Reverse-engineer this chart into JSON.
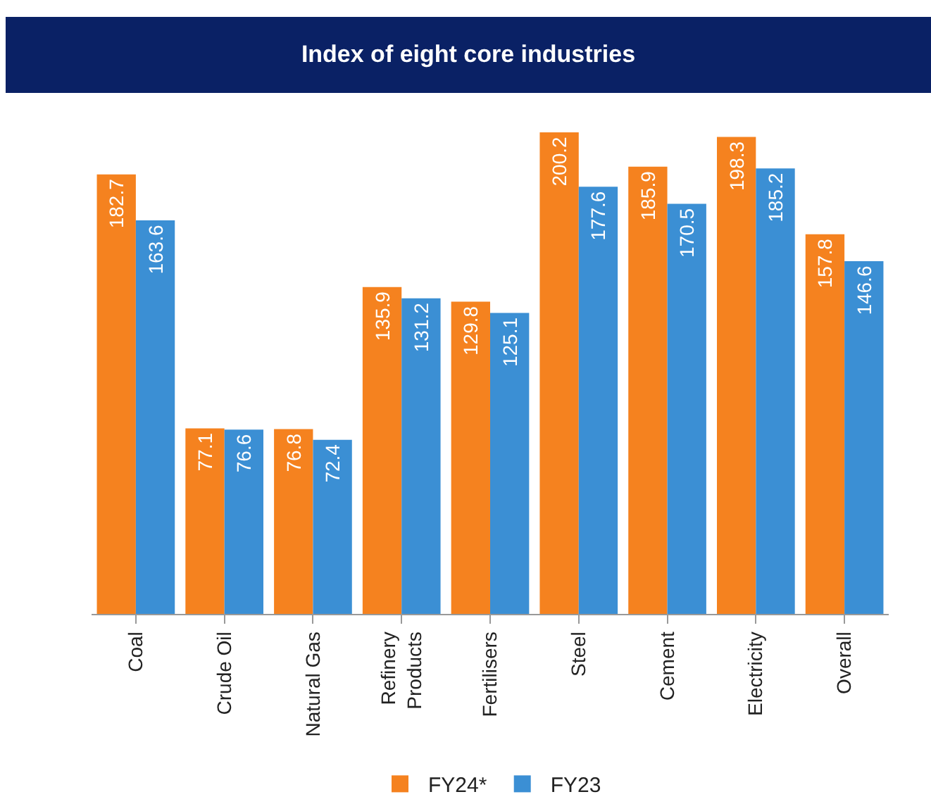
{
  "chart_data": {
    "type": "bar",
    "title": "Index of eight core industries",
    "categories": [
      "Coal",
      "Crude Oil",
      "Natural Gas",
      "Refinery Products",
      "Fertilisers",
      "Steel",
      "Cement",
      "Electricity",
      "Overall"
    ],
    "series": [
      {
        "name": "FY24*",
        "color": "#f5821f",
        "values": [
          182.7,
          77.1,
          76.8,
          135.9,
          129.8,
          200.2,
          185.9,
          198.3,
          157.8
        ]
      },
      {
        "name": "FY23",
        "color": "#3b8fd4",
        "values": [
          163.6,
          76.6,
          72.4,
          131.2,
          125.1,
          177.6,
          170.5,
          185.2,
          146.6
        ]
      }
    ],
    "data_labels": true,
    "grid": false,
    "legend": "bottom"
  }
}
